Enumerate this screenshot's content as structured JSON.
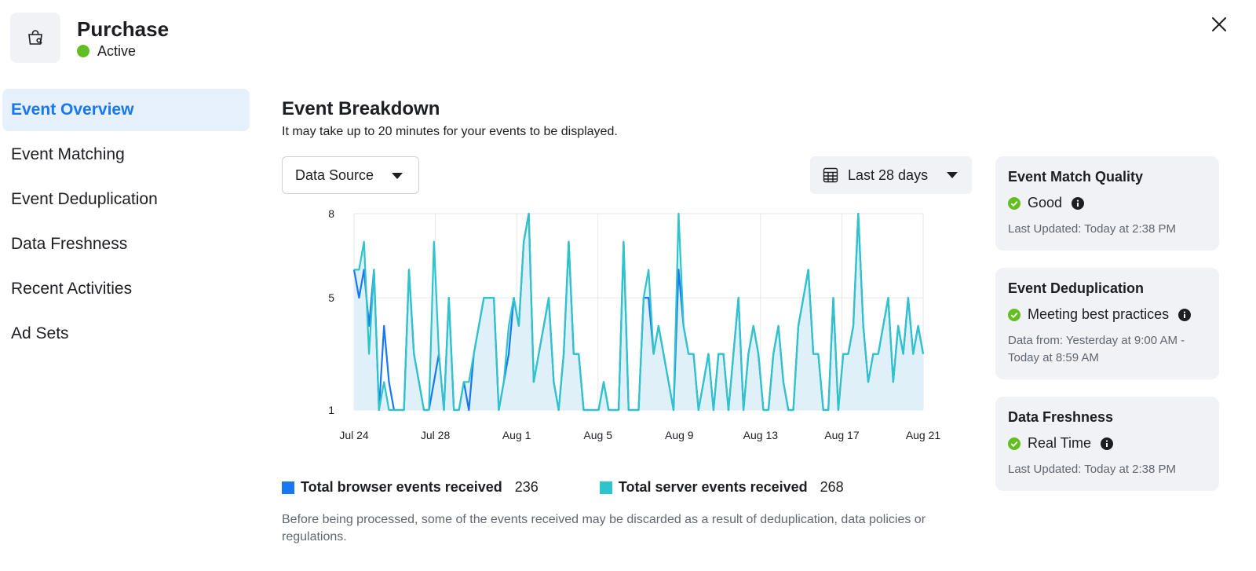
{
  "header": {
    "title": "Purchase",
    "status": "Active",
    "icon": "shopping-bag-icon"
  },
  "sidebar": {
    "items": [
      {
        "label": "Event Overview",
        "active": true
      },
      {
        "label": "Event Matching",
        "active": false
      },
      {
        "label": "Event Deduplication",
        "active": false
      },
      {
        "label": "Data Freshness",
        "active": false
      },
      {
        "label": "Recent Activities",
        "active": false
      },
      {
        "label": "Ad Sets",
        "active": false
      }
    ]
  },
  "main": {
    "title": "Event Breakdown",
    "subtitle": "It may take up to 20 minutes for your events to be displayed.",
    "data_source_label": "Data Source",
    "date_range_label": "Last 28 days",
    "footnote": "Before being processed, some of the events received may be discarded as a result of deduplication, data policies or regulations."
  },
  "legend": {
    "browser_label": "Total browser events received",
    "browser_total": "236",
    "server_label": "Total server events received",
    "server_total": "268"
  },
  "cards": {
    "match_quality": {
      "title": "Event Match Quality",
      "status": "Good",
      "meta": "Last Updated: Today at 2:38 PM"
    },
    "deduplication": {
      "title": "Event Deduplication",
      "status": "Meeting best practices",
      "meta": "Data from: Yesterday at 9:00 AM - Today at 8:59 AM"
    },
    "freshness": {
      "title": "Data Freshness",
      "status": "Real Time",
      "meta": "Last Updated: Today at 2:38 PM"
    }
  },
  "colors": {
    "accent": "#1877f2",
    "browser_series": "#1877f2",
    "server_series": "#2ec4cc",
    "area_fill": "#dff0f8",
    "status_green": "#63be21"
  },
  "chart_data": {
    "type": "line",
    "x_ticks": [
      "Jul 24",
      "Jul 28",
      "Aug 1",
      "Aug 5",
      "Aug 9",
      "Aug 13",
      "Aug 17",
      "Aug 21"
    ],
    "y_ticks": [
      1,
      5,
      8
    ],
    "grid": true,
    "series": [
      {
        "name": "Total browser events received",
        "color": "#1877f2",
        "values": [
          6,
          5,
          6,
          4,
          6,
          1,
          4,
          2,
          1,
          1,
          1,
          6,
          3,
          2,
          1,
          1,
          2,
          3,
          1,
          5,
          1,
          1,
          2,
          1,
          3,
          4,
          5,
          5,
          5,
          1,
          2,
          3,
          5,
          4,
          7,
          8,
          2,
          3,
          4,
          5,
          2,
          1,
          3,
          7,
          3,
          3,
          1,
          1,
          1,
          1,
          2,
          1,
          1,
          1,
          7,
          1,
          1,
          1,
          5,
          5,
          3,
          4,
          3,
          2,
          1,
          6,
          4,
          3,
          3,
          1,
          2,
          3,
          1,
          3,
          3,
          1,
          3,
          5,
          1,
          3,
          4,
          3,
          1,
          1,
          3,
          4,
          2,
          1,
          1,
          4,
          5,
          6,
          3,
          3,
          1,
          1,
          5,
          1,
          3,
          3,
          4,
          8,
          4,
          2,
          3,
          3,
          4,
          5,
          2,
          4,
          3,
          5,
          3,
          4,
          3
        ]
      },
      {
        "name": "Total server events received",
        "color": "#2ec4cc",
        "values": [
          6,
          6,
          7,
          3,
          6,
          1,
          2,
          1,
          1,
          1,
          1,
          6,
          3,
          2,
          1,
          1,
          7,
          3,
          1,
          5,
          1,
          1,
          2,
          2,
          3,
          4,
          5,
          5,
          5,
          1,
          2,
          4,
          5,
          4,
          7,
          8,
          2,
          3,
          4,
          5,
          2,
          1,
          3,
          7,
          3,
          3,
          1,
          1,
          1,
          1,
          2,
          1,
          1,
          1,
          7,
          1,
          1,
          1,
          5,
          6,
          3,
          4,
          3,
          2,
          1,
          8,
          4,
          3,
          3,
          1,
          2,
          3,
          1,
          3,
          3,
          1,
          3,
          5,
          1,
          3,
          4,
          3,
          1,
          1,
          3,
          4,
          2,
          1,
          1,
          4,
          5,
          6,
          3,
          3,
          1,
          1,
          5,
          1,
          3,
          3,
          4,
          8,
          4,
          2,
          3,
          3,
          4,
          5,
          2,
          4,
          3,
          5,
          3,
          4,
          3
        ]
      }
    ]
  }
}
